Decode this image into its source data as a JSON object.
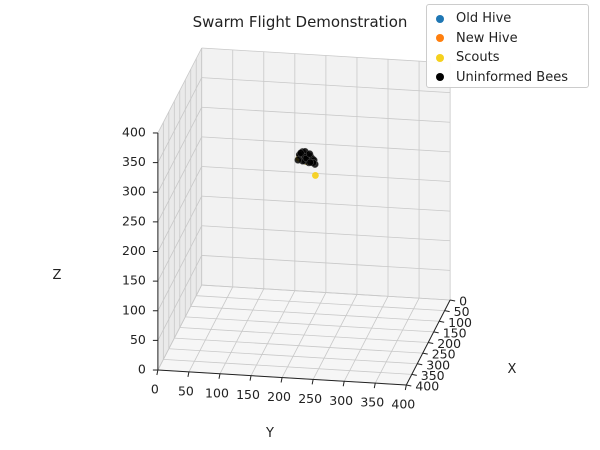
{
  "chart_data": {
    "type": "scatter",
    "projection": "3d",
    "title": "Swarm Flight Demonstration",
    "xlabel": "X",
    "ylabel": "Y",
    "zlabel": "Z",
    "xlim": [
      0,
      400
    ],
    "ylim": [
      0,
      400
    ],
    "zlim": [
      0,
      400
    ],
    "xticks": [
      0,
      50,
      100,
      150,
      200,
      250,
      300,
      350,
      400
    ],
    "yticks": [
      0,
      50,
      100,
      150,
      200,
      250,
      300,
      350,
      400
    ],
    "zticks": [
      0,
      50,
      100,
      150,
      200,
      250,
      300,
      350,
      400
    ],
    "grid": true,
    "legend_position": "top-right",
    "series": [
      {
        "name": "Old Hive",
        "color": "#1f77b4",
        "points": []
      },
      {
        "name": "New Hive",
        "color": "#ff7f0e",
        "points": []
      },
      {
        "name": "Scouts",
        "color": "#f5d01e",
        "points": [
          [
            200,
            200,
            305
          ],
          [
            206,
            193,
            300
          ],
          [
            196,
            209,
            298
          ],
          [
            209,
            206,
            296
          ],
          [
            193,
            196,
            303
          ],
          [
            215,
            221,
            276
          ]
        ]
      },
      {
        "name": "Uninformed Bees",
        "color": "#000000",
        "points": [
          [
            200,
            200,
            300
          ],
          [
            204,
            198,
            302
          ],
          [
            198,
            204,
            298
          ],
          [
            202,
            206,
            305
          ],
          [
            196,
            198,
            301
          ],
          [
            206,
            203,
            296
          ],
          [
            200,
            196,
            307
          ],
          [
            194,
            202,
            299
          ],
          [
            208,
            198,
            303
          ],
          [
            203,
            208,
            298
          ],
          [
            197,
            206,
            294
          ],
          [
            210,
            204,
            300
          ],
          [
            192,
            196,
            306
          ],
          [
            205,
            194,
            305
          ],
          [
            199,
            210,
            302
          ],
          [
            207,
            209,
            294
          ],
          [
            195,
            192,
            302
          ],
          [
            212,
            200,
            298
          ],
          [
            201,
            202,
            310
          ],
          [
            198,
            212,
            292
          ],
          [
            204,
            214,
            300
          ],
          [
            190,
            200,
            297
          ],
          [
            206,
            196,
            309
          ],
          [
            213,
            206,
            303
          ],
          [
            194,
            208,
            304
          ],
          [
            200,
            216,
            296
          ],
          [
            209,
            192,
            298
          ],
          [
            202,
            218,
            290
          ],
          [
            196,
            214,
            290
          ],
          [
            211,
            212,
            296
          ]
        ]
      }
    ]
  }
}
